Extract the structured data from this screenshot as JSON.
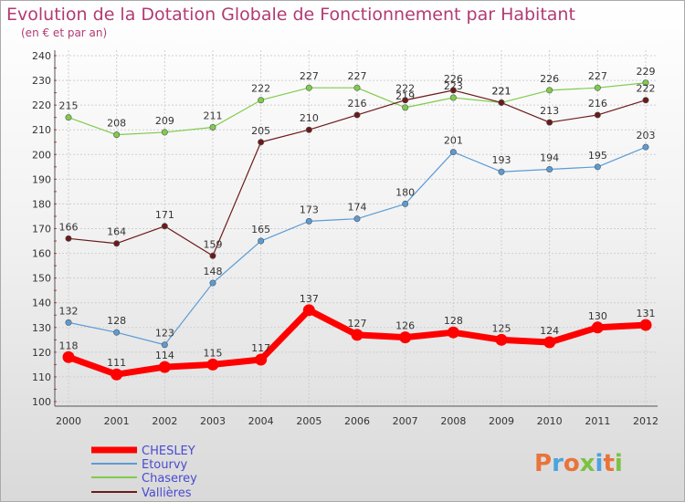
{
  "title": "Evolution de la Dotation Globale de Fonctionnement par Habitant",
  "subtitle": "(en € et par an)",
  "brand": "Proxiti",
  "chart_data": {
    "type": "line",
    "title": "Evolution de la Dotation Globale de Fonctionnement par Habitant",
    "ylabel": "(en € et par an)",
    "xlabel": "",
    "x": [
      "2000",
      "2001",
      "2002",
      "2003",
      "2004",
      "2005",
      "2006",
      "2007",
      "2008",
      "2009",
      "2010",
      "2011",
      "2012"
    ],
    "ylim": [
      100,
      240
    ],
    "yticks": [
      100,
      110,
      120,
      130,
      140,
      150,
      160,
      170,
      180,
      190,
      200,
      210,
      220,
      230,
      240
    ],
    "grid": true,
    "legend_position": "bottom-left",
    "series": [
      {
        "name": "CHESLEY",
        "color": "#ff0000",
        "values": [
          118,
          111,
          114,
          115,
          117,
          137,
          127,
          126,
          128,
          125,
          124,
          130,
          131
        ]
      },
      {
        "name": "Etourvy",
        "color": "#5b9bd5",
        "values": [
          132,
          128,
          123,
          148,
          165,
          173,
          174,
          180,
          201,
          193,
          194,
          195,
          203
        ]
      },
      {
        "name": "Chaserey",
        "color": "#7fcc4c",
        "values": [
          215,
          208,
          209,
          211,
          222,
          227,
          227,
          219,
          223,
          221,
          226,
          227,
          229
        ]
      },
      {
        "name": "Vallières",
        "color": "#6b1a1a",
        "values": [
          166,
          164,
          171,
          159,
          205,
          210,
          216,
          222,
          226,
          221,
          213,
          216,
          222
        ]
      }
    ]
  }
}
